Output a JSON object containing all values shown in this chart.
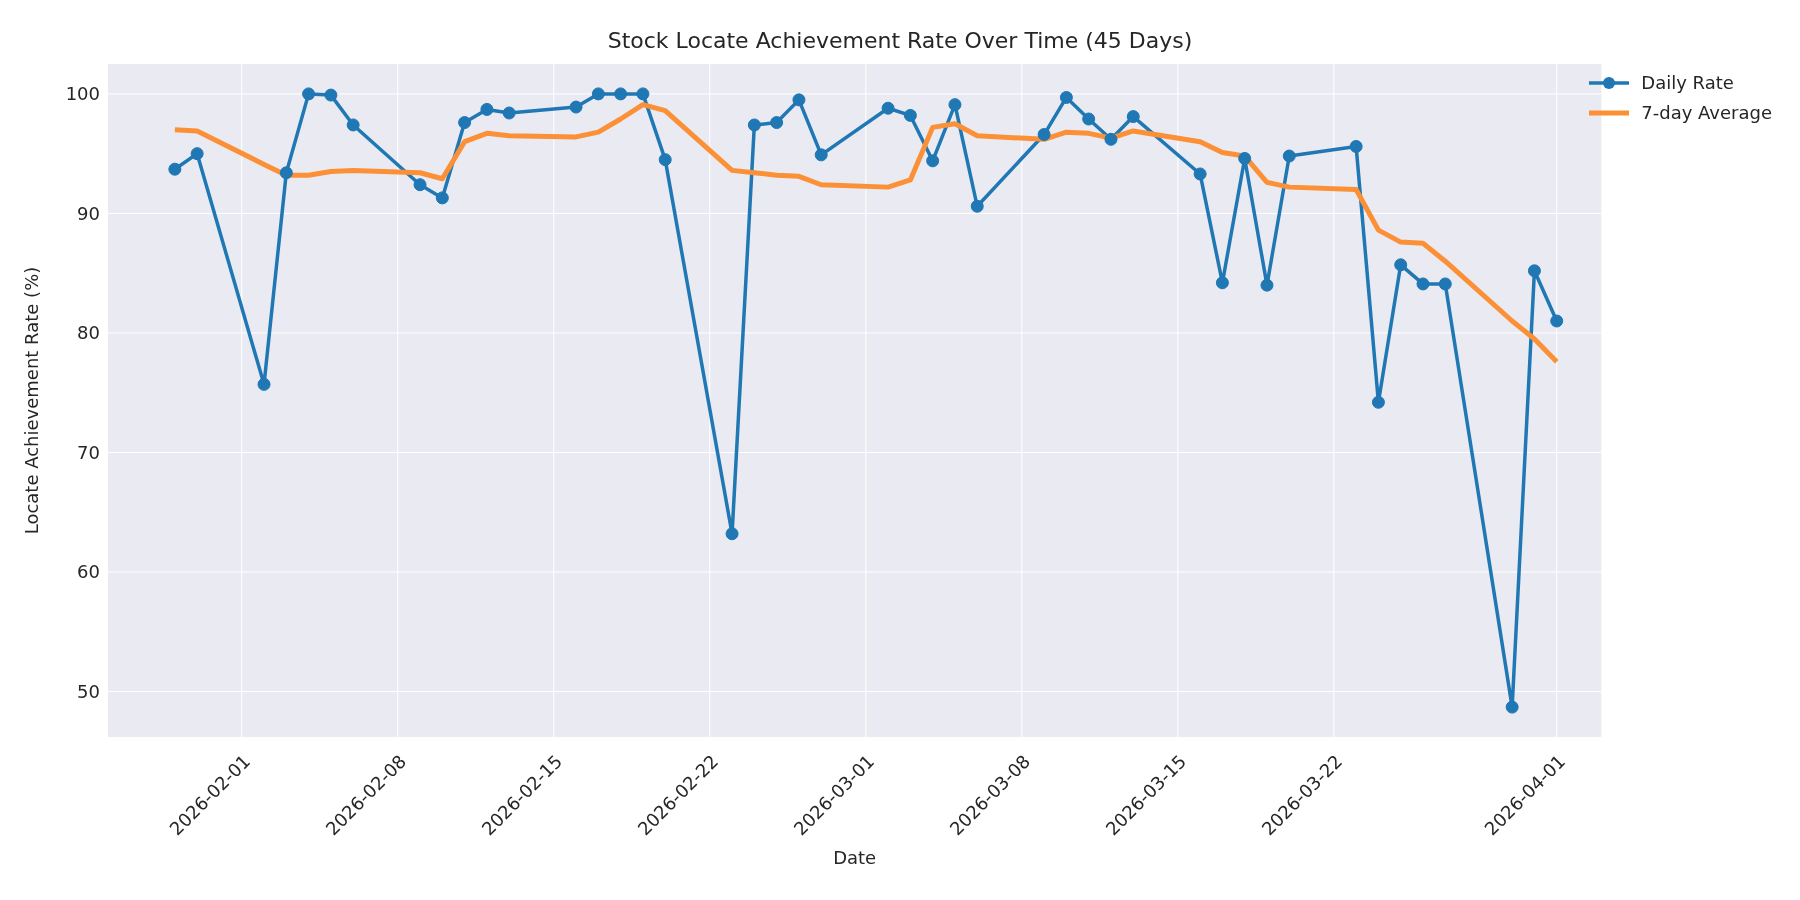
{
  "chart_data": {
    "type": "line",
    "title": "Stock Locate Achievement Rate Over Time (45 Days)",
    "xlabel": "Date",
    "ylabel": "Locate Achievement Rate (%)",
    "x": [
      "2026-01-29",
      "2026-01-30",
      "2026-02-02",
      "2026-02-03",
      "2026-02-04",
      "2026-02-05",
      "2026-02-06",
      "2026-02-09",
      "2026-02-10",
      "2026-02-11",
      "2026-02-12",
      "2026-02-13",
      "2026-02-16",
      "2026-02-17",
      "2026-02-18",
      "2026-02-19",
      "2026-02-20",
      "2026-02-23",
      "2026-02-24",
      "2026-02-25",
      "2026-02-26",
      "2026-02-27",
      "2026-03-02",
      "2026-03-03",
      "2026-03-04",
      "2026-03-05",
      "2026-03-06",
      "2026-03-09",
      "2026-03-10",
      "2026-03-11",
      "2026-03-12",
      "2026-03-13",
      "2026-03-16",
      "2026-03-17",
      "2026-03-18",
      "2026-03-19",
      "2026-03-20",
      "2026-03-23",
      "2026-03-24",
      "2026-03-25",
      "2026-03-26",
      "2026-03-27",
      "2026-03-30",
      "2026-03-31",
      "2026-04-01"
    ],
    "series": [
      {
        "name": "Daily Rate",
        "color": "#1f77b4",
        "marker": "circle",
        "values": [
          93.7,
          95.0,
          75.7,
          93.4,
          100,
          99.9,
          97.4,
          92.4,
          91.3,
          97.6,
          98.7,
          98.4,
          98.9,
          100,
          100,
          100,
          94.5,
          63.2,
          97.4,
          97.6,
          99.5,
          94.9,
          98.8,
          98.2,
          94.4,
          99.1,
          90.6,
          96.6,
          99.7,
          97.9,
          96.2,
          98.1,
          93.3,
          84.2,
          94.6,
          84.0,
          94.8,
          95.6,
          74.2,
          85.7,
          84.1,
          84.1,
          48.7,
          85.2,
          81.0
        ]
      },
      {
        "name": "7-day Average",
        "color": "#fb9037",
        "marker": "none",
        "values": [
          97.0,
          96.9,
          94.1,
          93.2,
          93.2,
          93.5,
          93.6,
          93.4,
          92.9,
          96.0,
          96.7,
          96.5,
          96.4,
          96.8,
          97.9,
          99.1,
          98.6,
          93.6,
          93.4,
          93.2,
          93.1,
          92.4,
          92.2,
          92.8,
          97.2,
          97.5,
          96.5,
          96.2,
          96.8,
          96.7,
          96.3,
          96.9,
          96.0,
          95.1,
          94.8,
          92.6,
          92.2,
          92.0,
          88.6,
          87.6,
          87.5,
          86.0,
          81.0,
          79.5,
          77.6
        ]
      }
    ],
    "xlim": [
      "2026-01-26",
      "2026-04-03"
    ],
    "xticks": [
      "2026-02-01",
      "2026-02-08",
      "2026-02-15",
      "2026-02-22",
      "2026-03-01",
      "2026-03-08",
      "2026-03-15",
      "2026-03-22",
      "2026-04-01"
    ],
    "ylim": [
      46.2,
      102.5
    ],
    "yticks": [
      50,
      60,
      70,
      80,
      90,
      100
    ],
    "grid": true,
    "legend": "top right",
    "line_style": "solid"
  }
}
